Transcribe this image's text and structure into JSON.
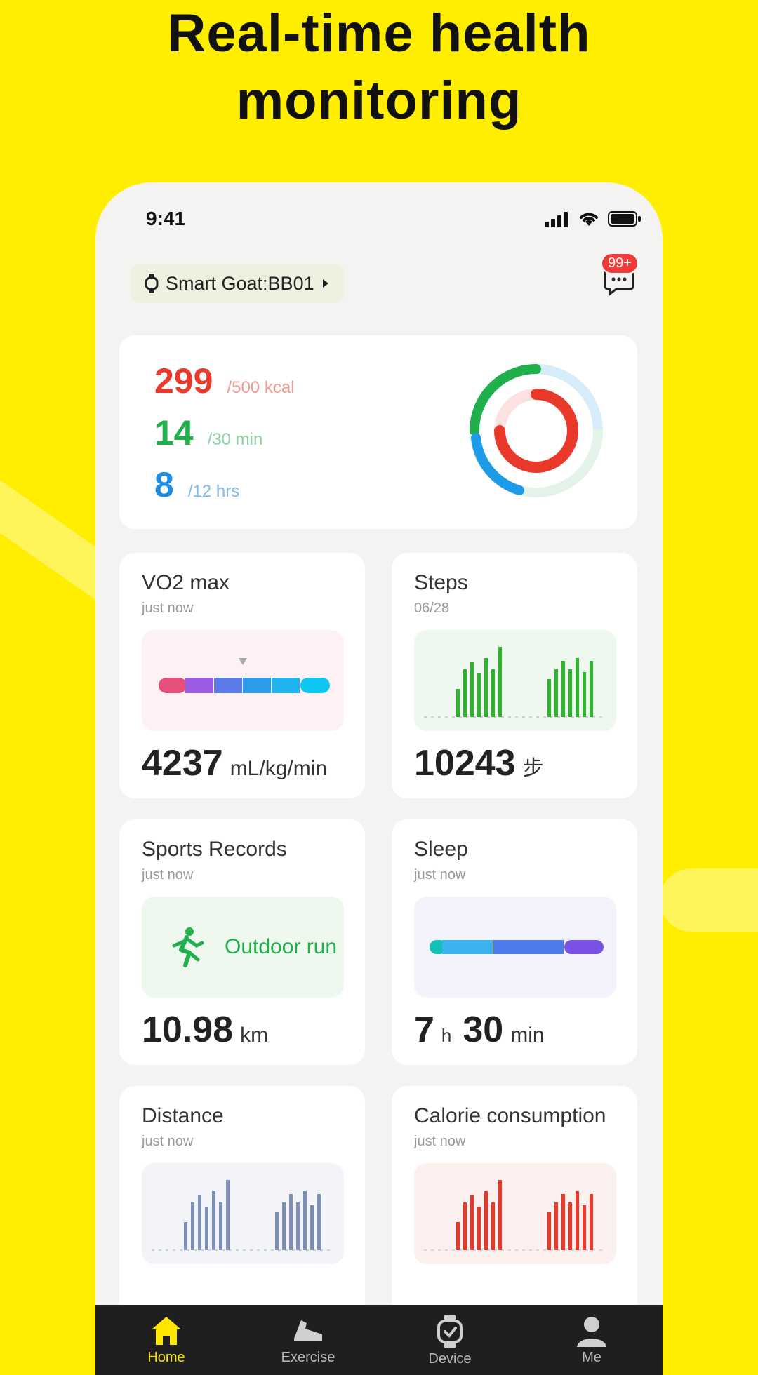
{
  "headline": {
    "line1": "Real-time health",
    "line2": "monitoring"
  },
  "status_bar": {
    "time": "9:41"
  },
  "device": {
    "name": "Smart Goat:BB01"
  },
  "messages": {
    "badge": "99+"
  },
  "activity": {
    "calories": {
      "value": "299",
      "goal": "/500 kcal",
      "color": "#E8392A"
    },
    "exercise": {
      "value": "14",
      "goal": "/30 min",
      "color": "#1FB04B"
    },
    "stand": {
      "value": "8",
      "goal": "/12 hrs",
      "color": "#1E8CE3"
    }
  },
  "tiles": {
    "vo2": {
      "title": "VO2 max",
      "subtitle": "just now",
      "value": "4237",
      "unit": "mL/kg/min"
    },
    "steps": {
      "title": "Steps",
      "subtitle": "06/28",
      "value": "10243",
      "unit": "步"
    },
    "sports": {
      "title": "Sports Records",
      "subtitle": "just now",
      "activity": "Outdoor run",
      "value": "10.98",
      "unit": "km"
    },
    "sleep": {
      "title": "Sleep",
      "subtitle": "just now",
      "hours": "7",
      "h_unit": "h",
      "minutes": "30",
      "m_unit": "min"
    },
    "distance": {
      "title": "Distance",
      "subtitle": "just now"
    },
    "calorie": {
      "title": "Calorie consumption",
      "subtitle": "just now"
    }
  },
  "tabbar": {
    "items": [
      "Home",
      "Exercise",
      "Device",
      "Me"
    ]
  }
}
